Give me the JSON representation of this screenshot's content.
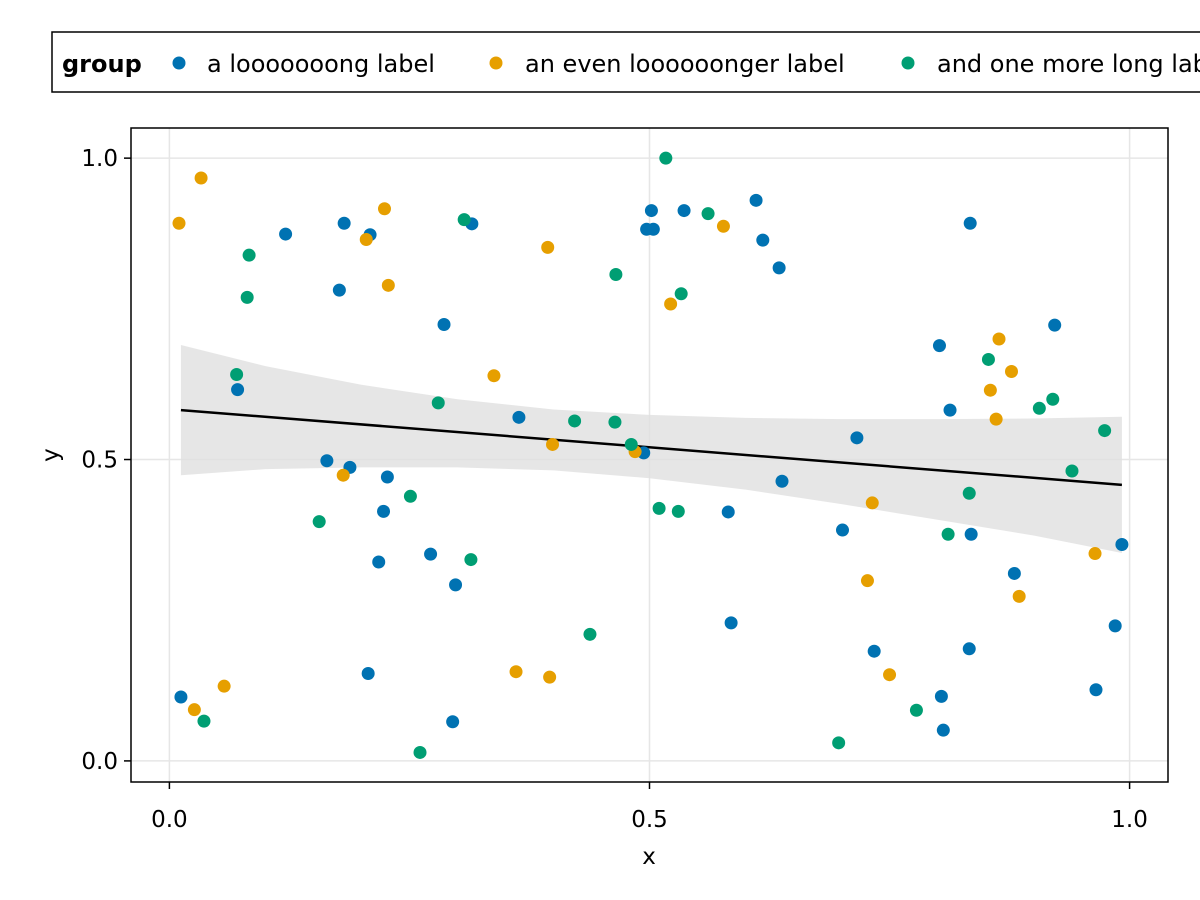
{
  "chart_data": {
    "type": "scatter",
    "title": "",
    "xlabel": "x",
    "ylabel": "y",
    "xlim": [
      -0.04,
      1.04
    ],
    "ylim": [
      -0.035,
      1.05
    ],
    "xticks": [
      "0.0",
      "0.5",
      "1.0"
    ],
    "xtick_values": [
      0,
      0.5,
      1
    ],
    "yticks": [
      "0.0",
      "0.5",
      "1.0"
    ],
    "ytick_values": [
      0,
      0.5,
      1
    ],
    "grid": true,
    "legend": {
      "title": "group",
      "placement": "top",
      "entries": [
        "a looooooong label",
        "an even loooooonger label",
        "and one more long label"
      ]
    },
    "colors": [
      "#0072b2",
      "#e69f00",
      "#009e73"
    ],
    "series": [
      {
        "name": "a looooooong label",
        "points": [
          [
            0.012,
            0.106
          ],
          [
            0.071,
            0.616
          ],
          [
            0.121,
            0.874
          ],
          [
            0.164,
            0.498
          ],
          [
            0.177,
            0.781
          ],
          [
            0.182,
            0.892
          ],
          [
            0.188,
            0.487
          ],
          [
            0.207,
            0.145
          ],
          [
            0.209,
            0.873
          ],
          [
            0.218,
            0.33
          ],
          [
            0.223,
            0.414
          ],
          [
            0.227,
            0.471
          ],
          [
            0.272,
            0.343
          ],
          [
            0.286,
            0.724
          ],
          [
            0.295,
            0.065
          ],
          [
            0.298,
            0.292
          ],
          [
            0.315,
            0.891
          ],
          [
            0.364,
            0.57
          ],
          [
            0.494,
            0.511
          ],
          [
            0.497,
            0.882
          ],
          [
            0.502,
            0.913
          ],
          [
            0.504,
            0.882
          ],
          [
            0.536,
            0.913
          ],
          [
            0.582,
            0.413
          ],
          [
            0.585,
            0.229
          ],
          [
            0.611,
            0.93
          ],
          [
            0.618,
            0.864
          ],
          [
            0.635,
            0.818
          ],
          [
            0.638,
            0.464
          ],
          [
            0.701,
            0.383
          ],
          [
            0.716,
            0.536
          ],
          [
            0.734,
            0.182
          ],
          [
            0.802,
            0.689
          ],
          [
            0.804,
            0.107
          ],
          [
            0.806,
            0.051
          ],
          [
            0.813,
            0.582
          ],
          [
            0.833,
            0.186
          ],
          [
            0.834,
            0.892
          ],
          [
            0.835,
            0.376
          ],
          [
            0.88,
            0.311
          ],
          [
            0.922,
            0.723
          ],
          [
            0.965,
            0.118
          ],
          [
            0.985,
            0.224
          ],
          [
            0.992,
            0.359
          ]
        ]
      },
      {
        "name": "an even loooooonger label",
        "points": [
          [
            0.01,
            0.892
          ],
          [
            0.026,
            0.085
          ],
          [
            0.033,
            0.967
          ],
          [
            0.057,
            0.124
          ],
          [
            0.181,
            0.474
          ],
          [
            0.205,
            0.865
          ],
          [
            0.224,
            0.916
          ],
          [
            0.228,
            0.789
          ],
          [
            0.338,
            0.639
          ],
          [
            0.361,
            0.148
          ],
          [
            0.394,
            0.852
          ],
          [
            0.396,
            0.139
          ],
          [
            0.399,
            0.525
          ],
          [
            0.485,
            0.513
          ],
          [
            0.522,
            0.758
          ],
          [
            0.577,
            0.887
          ],
          [
            0.727,
            0.299
          ],
          [
            0.732,
            0.428
          ],
          [
            0.75,
            0.143
          ],
          [
            0.855,
            0.615
          ],
          [
            0.861,
            0.567
          ],
          [
            0.864,
            0.7
          ],
          [
            0.877,
            0.646
          ],
          [
            0.885,
            0.273
          ],
          [
            0.964,
            0.344
          ]
        ]
      },
      {
        "name": "and one more long label",
        "points": [
          [
            0.036,
            0.066
          ],
          [
            0.07,
            0.641
          ],
          [
            0.081,
            0.769
          ],
          [
            0.083,
            0.839
          ],
          [
            0.156,
            0.397
          ],
          [
            0.251,
            0.439
          ],
          [
            0.261,
            0.014
          ],
          [
            0.28,
            0.594
          ],
          [
            0.307,
            0.898
          ],
          [
            0.314,
            0.334
          ],
          [
            0.438,
            0.21
          ],
          [
            0.422,
            0.564
          ],
          [
            0.464,
            0.562
          ],
          [
            0.465,
            0.807
          ],
          [
            0.481,
            0.525
          ],
          [
            0.51,
            0.419
          ],
          [
            0.517,
            1.0
          ],
          [
            0.53,
            0.414
          ],
          [
            0.533,
            0.775
          ],
          [
            0.561,
            0.908
          ],
          [
            0.697,
            0.03
          ],
          [
            0.778,
            0.084
          ],
          [
            0.811,
            0.376
          ],
          [
            0.833,
            0.444
          ],
          [
            0.853,
            0.666
          ],
          [
            0.906,
            0.585
          ],
          [
            0.92,
            0.6
          ],
          [
            0.94,
            0.481
          ],
          [
            0.974,
            0.548
          ]
        ]
      }
    ],
    "regression": {
      "x": [
        0.012,
        0.992
      ],
      "y": [
        0.582,
        0.458
      ],
      "band": {
        "x": [
          0.012,
          0.1,
          0.2,
          0.3,
          0.4,
          0.5,
          0.6,
          0.7,
          0.8,
          0.9,
          0.992
        ],
        "upper": [
          0.69,
          0.655,
          0.624,
          0.6,
          0.583,
          0.574,
          0.569,
          0.567,
          0.567,
          0.568,
          0.571
        ],
        "lower": [
          0.474,
          0.484,
          0.487,
          0.487,
          0.482,
          0.469,
          0.45,
          0.426,
          0.4,
          0.374,
          0.345
        ]
      }
    }
  }
}
